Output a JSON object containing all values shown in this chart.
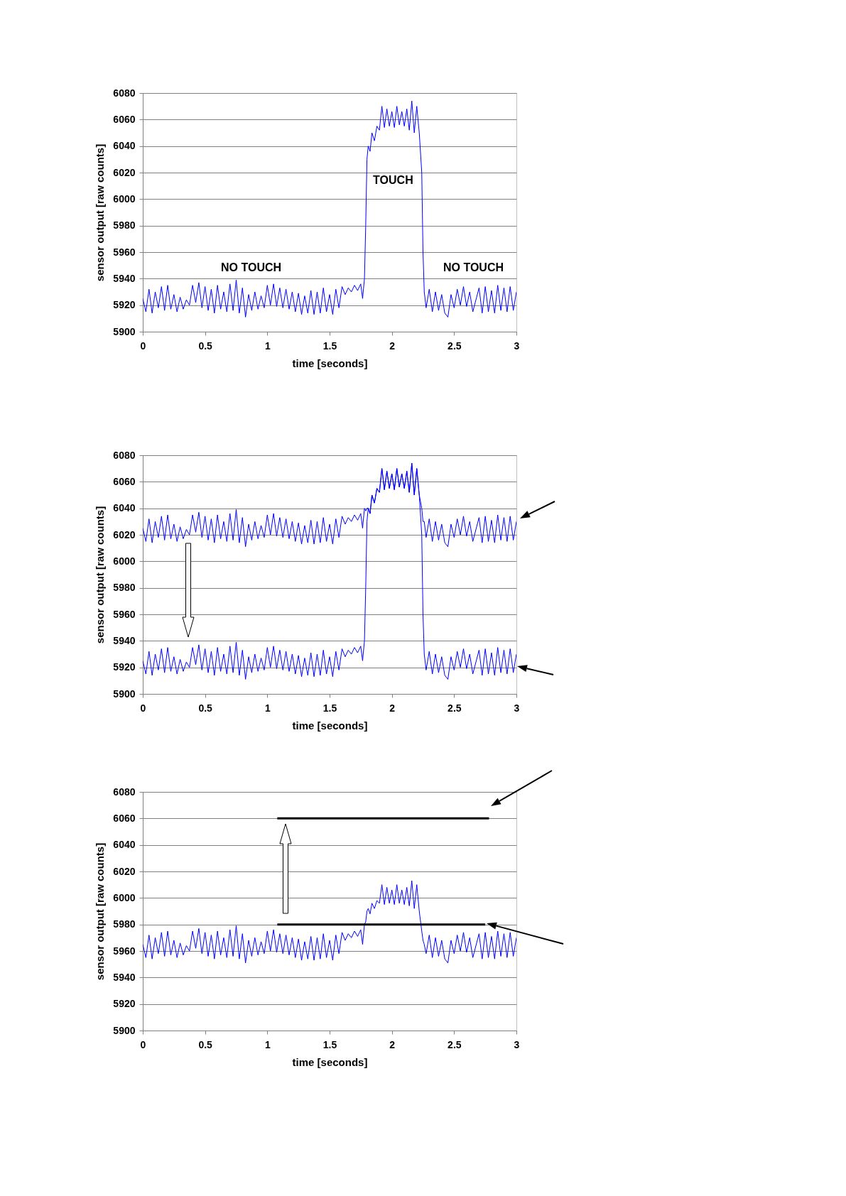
{
  "chart_data": [
    {
      "type": "line",
      "xlabel": "time [seconds]",
      "ylabel": "sensor output [raw counts]",
      "xlim": [
        0,
        3
      ],
      "xticks": [
        0,
        0.5,
        1,
        1.5,
        2,
        2.5,
        3
      ],
      "ylim": [
        5900,
        6080
      ],
      "yticks": [
        5900,
        5920,
        5940,
        5960,
        5980,
        6000,
        6020,
        6040,
        6060,
        6080
      ],
      "grid": "y",
      "marker": "none",
      "line_style": "solid",
      "annotations": [
        "NO TOUCH",
        "TOUCH",
        "NO TOUCH"
      ],
      "x": [
        0,
        0.025,
        0.05,
        0.075,
        0.1,
        0.125,
        0.15,
        0.175,
        0.2,
        0.225,
        0.25,
        0.275,
        0.3,
        0.325,
        0.35,
        0.375,
        0.4,
        0.425,
        0.45,
        0.475,
        0.5,
        0.525,
        0.55,
        0.575,
        0.6,
        0.625,
        0.65,
        0.675,
        0.7,
        0.725,
        0.75,
        0.775,
        0.8,
        0.825,
        0.85,
        0.875,
        0.9,
        0.925,
        0.95,
        0.975,
        1,
        1.025,
        1.05,
        1.075,
        1.1,
        1.125,
        1.15,
        1.175,
        1.2,
        1.225,
        1.25,
        1.275,
        1.3,
        1.325,
        1.35,
        1.375,
        1.4,
        1.425,
        1.45,
        1.475,
        1.5,
        1.525,
        1.55,
        1.575,
        1.6,
        1.625,
        1.65,
        1.675,
        1.7,
        1.725,
        1.75,
        1.765,
        1.78,
        1.79,
        1.8,
        1.81,
        1.825,
        1.84,
        1.86,
        1.88,
        1.9,
        1.92,
        1.94,
        1.96,
        1.98,
        2,
        2.02,
        2.04,
        2.06,
        2.08,
        2.1,
        2.12,
        2.14,
        2.16,
        2.18,
        2.2,
        2.22,
        2.24,
        2.25,
        2.26,
        2.275,
        2.3,
        2.325,
        2.35,
        2.375,
        2.4,
        2.425,
        2.45,
        2.475,
        2.5,
        2.525,
        2.55,
        2.575,
        2.6,
        2.625,
        2.65,
        2.7,
        2.725,
        2.75,
        2.775,
        2.8,
        2.825,
        2.85,
        2.875,
        2.9,
        2.925,
        2.95,
        2.975,
        3
      ],
      "series": [
        {
          "color": "#0000ff",
          "values": [
            5925,
            5915,
            5932,
            5914,
            5930,
            5918,
            5934,
            5916,
            5935,
            5917,
            5928,
            5915,
            5926,
            5917,
            5924,
            5920,
            5935,
            5922,
            5937,
            5918,
            5934,
            5916,
            5932,
            5914,
            5935,
            5917,
            5930,
            5915,
            5936,
            5916,
            5939,
            5914,
            5933,
            5911,
            5928,
            5916,
            5930,
            5917,
            5927,
            5918,
            5935,
            5920,
            5936,
            5919,
            5933,
            5918,
            5932,
            5917,
            5930,
            5915,
            5929,
            5913,
            5927,
            5914,
            5931,
            5913,
            5930,
            5914,
            5933,
            5915,
            5928,
            5913,
            5932,
            5918,
            5934,
            5928,
            5933,
            5930,
            5935,
            5931,
            5936,
            5925,
            5940,
            5980,
            6030,
            6040,
            6036,
            6050,
            6044,
            6055,
            6052,
            6070,
            6054,
            6068,
            6055,
            6066,
            6054,
            6070,
            6056,
            6066,
            6055,
            6068,
            6052,
            6074,
            6050,
            6070,
            6050,
            6020,
            5960,
            5930,
            5918,
            5932,
            5915,
            5930,
            5916,
            5928,
            5914,
            5911,
            5928,
            5918,
            5932,
            5920,
            5934,
            5919,
            5930,
            5915,
            5933,
            5914,
            5934,
            5915,
            5931,
            5914,
            5935,
            5916,
            5933,
            5915,
            5934,
            5916,
            5930
          ]
        }
      ]
    },
    {
      "type": "line",
      "xlabel": "time [seconds]",
      "ylabel": "sensor output [raw counts]",
      "xlim": [
        0,
        3
      ],
      "xticks": [
        0,
        0.5,
        1,
        1.5,
        2,
        2.5,
        3
      ],
      "ylim": [
        5900,
        6080
      ],
      "yticks": [
        5900,
        5920,
        5940,
        5960,
        5980,
        6000,
        6020,
        6040,
        6060,
        6080
      ],
      "grid": "y",
      "marker": "none",
      "line_style": "solid",
      "x": [
        0,
        0.025,
        0.05,
        0.075,
        0.1,
        0.125,
        0.15,
        0.175,
        0.2,
        0.225,
        0.25,
        0.275,
        0.3,
        0.325,
        0.35,
        0.375,
        0.4,
        0.425,
        0.45,
        0.475,
        0.5,
        0.525,
        0.55,
        0.575,
        0.6,
        0.625,
        0.65,
        0.675,
        0.7,
        0.725,
        0.75,
        0.775,
        0.8,
        0.825,
        0.85,
        0.875,
        0.9,
        0.925,
        0.95,
        0.975,
        1,
        1.025,
        1.05,
        1.075,
        1.1,
        1.125,
        1.15,
        1.175,
        1.2,
        1.225,
        1.25,
        1.275,
        1.3,
        1.325,
        1.35,
        1.375,
        1.4,
        1.425,
        1.45,
        1.475,
        1.5,
        1.525,
        1.55,
        1.575,
        1.6,
        1.625,
        1.65,
        1.675,
        1.7,
        1.725,
        1.75,
        1.765,
        1.78,
        1.79,
        1.8,
        1.81,
        1.825,
        1.84,
        1.86,
        1.88,
        1.9,
        1.92,
        1.94,
        1.96,
        1.98,
        2,
        2.02,
        2.04,
        2.06,
        2.08,
        2.1,
        2.12,
        2.14,
        2.16,
        2.18,
        2.2,
        2.22,
        2.24,
        2.25,
        2.26,
        2.275,
        2.3,
        2.325,
        2.35,
        2.375,
        2.4,
        2.425,
        2.45,
        2.475,
        2.5,
        2.525,
        2.55,
        2.575,
        2.6,
        2.625,
        2.65,
        2.7,
        2.725,
        2.75,
        2.775,
        2.8,
        2.825,
        2.85,
        2.875,
        2.9,
        2.925,
        2.95,
        2.975,
        3
      ],
      "series": [
        {
          "color": "#0000ff",
          "values": [
            6025,
            6015,
            6032,
            6014,
            6030,
            6018,
            6034,
            6016,
            6035,
            6017,
            6028,
            6015,
            6026,
            6017,
            6024,
            6020,
            6035,
            6022,
            6037,
            6018,
            6034,
            6016,
            6032,
            6014,
            6035,
            6017,
            6030,
            6015,
            6036,
            6016,
            6039,
            6014,
            6033,
            6011,
            6028,
            6016,
            6030,
            6017,
            6027,
            6018,
            6035,
            6020,
            6036,
            6019,
            6033,
            6018,
            6032,
            6017,
            6030,
            6015,
            6029,
            6013,
            6027,
            6014,
            6031,
            6013,
            6030,
            6014,
            6033,
            6015,
            6028,
            6013,
            6032,
            6018,
            6034,
            6028,
            6033,
            6030,
            6035,
            6031,
            6036,
            6025,
            6040,
            6038,
            6040,
            6040,
            6036,
            6050,
            6044,
            6055,
            6052,
            6070,
            6054,
            6068,
            6055,
            6066,
            6054,
            6070,
            6056,
            6066,
            6055,
            6068,
            6052,
            6074,
            6050,
            6070,
            6050,
            6040,
            6030,
            6030,
            6018,
            6032,
            6015,
            6030,
            6016,
            6028,
            6014,
            6011,
            6028,
            6018,
            6032,
            6020,
            6034,
            6019,
            6030,
            6015,
            6033,
            6014,
            6034,
            6015,
            6031,
            6014,
            6035,
            6016,
            6033,
            6015,
            6034,
            6016,
            6030
          ]
        },
        {
          "color": "#0000ff",
          "values": [
            5925,
            5915,
            5932,
            5914,
            5930,
            5918,
            5934,
            5916,
            5935,
            5917,
            5928,
            5915,
            5926,
            5917,
            5924,
            5920,
            5935,
            5922,
            5937,
            5918,
            5934,
            5916,
            5932,
            5914,
            5935,
            5917,
            5930,
            5915,
            5936,
            5916,
            5939,
            5914,
            5933,
            5911,
            5928,
            5916,
            5930,
            5917,
            5927,
            5918,
            5935,
            5920,
            5936,
            5919,
            5933,
            5918,
            5932,
            5917,
            5930,
            5915,
            5929,
            5913,
            5927,
            5914,
            5931,
            5913,
            5930,
            5914,
            5933,
            5915,
            5928,
            5913,
            5932,
            5918,
            5934,
            5928,
            5933,
            5930,
            5935,
            5931,
            5936,
            5925,
            5940,
            5980,
            6030,
            6040,
            6036,
            6050,
            6044,
            6055,
            6052,
            6070,
            6054,
            6068,
            6055,
            6066,
            6054,
            6070,
            6056,
            6066,
            6055,
            6068,
            6052,
            6074,
            6050,
            6070,
            6050,
            6020,
            5960,
            5930,
            5918,
            5932,
            5915,
            5930,
            5916,
            5928,
            5914,
            5911,
            5928,
            5918,
            5932,
            5920,
            5934,
            5919,
            5930,
            5915,
            5933,
            5914,
            5934,
            5915,
            5931,
            5914,
            5935,
            5916,
            5933,
            5915,
            5934,
            5916,
            5930
          ]
        }
      ]
    },
    {
      "type": "line",
      "xlabel": "time [seconds]",
      "ylabel": "sensor output [raw counts]",
      "xlim": [
        0,
        3
      ],
      "xticks": [
        0,
        0.5,
        1,
        1.5,
        2,
        2.5,
        3
      ],
      "ylim": [
        5900,
        6080
      ],
      "yticks": [
        5900,
        5920,
        5940,
        5960,
        5980,
        6000,
        6020,
        6040,
        6060,
        6080
      ],
      "grid": "y",
      "marker": "none",
      "line_style": "solid",
      "x": [
        0,
        0.025,
        0.05,
        0.075,
        0.1,
        0.125,
        0.15,
        0.175,
        0.2,
        0.225,
        0.25,
        0.275,
        0.3,
        0.325,
        0.35,
        0.375,
        0.4,
        0.425,
        0.45,
        0.475,
        0.5,
        0.525,
        0.55,
        0.575,
        0.6,
        0.625,
        0.65,
        0.675,
        0.7,
        0.725,
        0.75,
        0.775,
        0.8,
        0.825,
        0.85,
        0.875,
        0.9,
        0.925,
        0.95,
        0.975,
        1,
        1.025,
        1.05,
        1.075,
        1.1,
        1.125,
        1.15,
        1.175,
        1.2,
        1.225,
        1.25,
        1.275,
        1.3,
        1.325,
        1.35,
        1.375,
        1.4,
        1.425,
        1.45,
        1.475,
        1.5,
        1.525,
        1.55,
        1.575,
        1.6,
        1.625,
        1.65,
        1.675,
        1.7,
        1.725,
        1.75,
        1.765,
        1.78,
        1.79,
        1.8,
        1.81,
        1.825,
        1.84,
        1.86,
        1.88,
        1.9,
        1.92,
        1.94,
        1.96,
        1.98,
        2,
        2.02,
        2.04,
        2.06,
        2.08,
        2.1,
        2.12,
        2.14,
        2.16,
        2.18,
        2.2,
        2.22,
        2.24,
        2.25,
        2.26,
        2.275,
        2.3,
        2.325,
        2.35,
        2.375,
        2.4,
        2.425,
        2.45,
        2.475,
        2.5,
        2.525,
        2.55,
        2.575,
        2.6,
        2.625,
        2.65,
        2.7,
        2.725,
        2.75,
        2.775,
        2.8,
        2.825,
        2.85,
        2.875,
        2.9,
        2.925,
        2.95,
        2.975,
        3
      ],
      "series": [
        {
          "color": "#0000ff",
          "values": [
            5965,
            5955,
            5972,
            5954,
            5970,
            5958,
            5974,
            5956,
            5975,
            5957,
            5968,
            5955,
            5966,
            5957,
            5964,
            5960,
            5975,
            5962,
            5977,
            5958,
            5974,
            5956,
            5972,
            5954,
            5975,
            5957,
            5970,
            5955,
            5976,
            5956,
            5979,
            5954,
            5973,
            5951,
            5968,
            5956,
            5970,
            5957,
            5967,
            5958,
            5975,
            5960,
            5976,
            5959,
            5973,
            5958,
            5972,
            5957,
            5970,
            5955,
            5969,
            5953,
            5967,
            5954,
            5971,
            5953,
            5970,
            5954,
            5973,
            5955,
            5968,
            5953,
            5972,
            5958,
            5974,
            5968,
            5973,
            5970,
            5975,
            5971,
            5976,
            5965,
            5980,
            5982,
            5990,
            5992,
            5988,
            5996,
            5992,
            5998,
            5996,
            6010,
            5995,
            6008,
            5996,
            6006,
            5995,
            6010,
            5996,
            6006,
            5995,
            6008,
            5994,
            6013,
            5992,
            6010,
            5990,
            5975,
            5968,
            5965,
            5958,
            5972,
            5955,
            5970,
            5956,
            5968,
            5954,
            5951,
            5968,
            5958,
            5972,
            5960,
            5974,
            5959,
            5970,
            5955,
            5973,
            5954,
            5974,
            5955,
            5971,
            5954,
            5975,
            5956,
            5973,
            5955,
            5974,
            5956,
            5970
          ]
        },
        {
          "color": "#000000",
          "x": [
            1.08,
            2.78
          ],
          "values": [
            6060,
            6060
          ]
        },
        {
          "color": "#000000",
          "x": [
            1.08,
            2.75
          ],
          "values": [
            5980,
            5980
          ]
        }
      ]
    }
  ]
}
